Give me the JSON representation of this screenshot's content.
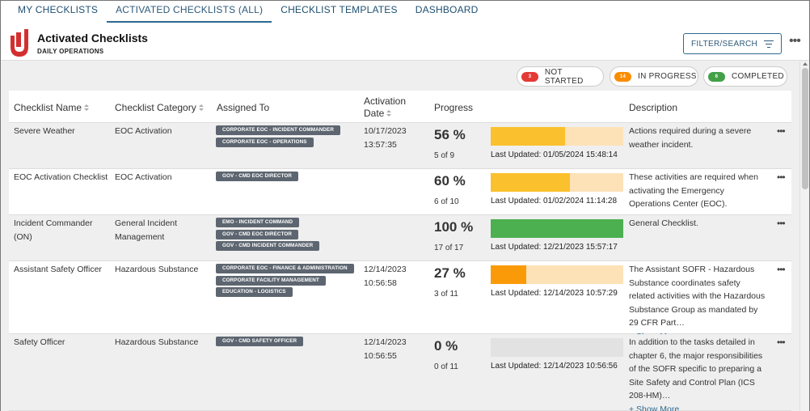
{
  "tabs": [
    "MY CHECKLISTS",
    "ACTIVATED CHECKLISTS (ALL)",
    "CHECKLIST TEMPLATES",
    "DASHBOARD"
  ],
  "header": {
    "title": "Activated Checklists",
    "subtitle": "DAILY OPERATIONS",
    "filter_label": "FILTER/SEARCH",
    "more": "•••"
  },
  "legend": [
    {
      "count": "3",
      "label": "NOT STARTED",
      "color": "#e53935"
    },
    {
      "count": "14",
      "label": "IN PROGRESS",
      "color": "#fb8c00"
    },
    {
      "count": "6",
      "label": "COMPLETED",
      "color": "#43a047"
    }
  ],
  "columns": {
    "name": "Checklist Name",
    "category": "Checklist Category",
    "assigned": "Assigned To",
    "activation_line1": "Activation",
    "activation_line2": "Date",
    "progress": "Progress",
    "description": "Description"
  },
  "rows": [
    {
      "name": "Severe Weather",
      "category": "EOC Activation",
      "assigned": [
        "CORPORATE EOC - INCIDENT COMMANDER",
        "CORPORATE EOC - OPERATIONS"
      ],
      "date": "10/17/2023",
      "time": "13:57:35",
      "percent": "56 %",
      "progress": 0.56,
      "count": "5 of 9",
      "bar_color": "#fbc02d",
      "updated": "Last Updated: 01/05/2024 15:48:14",
      "description": "Actions required during a severe weather incident.",
      "show_more": ""
    },
    {
      "name": "EOC Activation Checklist",
      "category": "EOC Activation",
      "assigned": [
        "GOV - CMD EOC DIRECTOR"
      ],
      "date": "",
      "time": "",
      "percent": "60 %",
      "progress": 0.6,
      "count": "6 of 10",
      "bar_color": "#fbc02d",
      "updated": "Last Updated: 01/02/2024 11:14:28",
      "description": "These activities are required when activating the Emergency Operations Center (EOC).",
      "show_more": ""
    },
    {
      "name": "Incident Commander (ON)",
      "category": "General Incident Management",
      "assigned": [
        "EMO - INCIDENT COMMAND",
        "GOV - CMD EOC DIRECTOR",
        "GOV - CMD INCIDENT COMMANDER"
      ],
      "date": "",
      "time": "",
      "percent": "100 %",
      "progress": 1.0,
      "count": "17 of 17",
      "bar_color": "#4caf50",
      "updated": "Last Updated: 12/21/2023 15:57:17",
      "description": "General Checklist.",
      "show_more": ""
    },
    {
      "name": "Assistant Safety Officer",
      "category": "Hazardous Substance",
      "assigned": [
        "CORPORATE EOC - FINANCE & ADMINISTRATION",
        "CORPORATE FACILITY MANAGEMENT",
        "EDUCATION - LOGISTICS"
      ],
      "date": "12/14/2023",
      "time": "10:56:58",
      "percent": "27 %",
      "progress": 0.27,
      "count": "3 of 11",
      "bar_color": "#fb9a08",
      "updated": "Last Updated: 12/14/2023 10:57:29",
      "description": "The Assistant SOFR - Hazardous Substance coordinates safety related activities with the Hazardous Substance Group as mandated by 29 CFR Part…",
      "show_more": "+ Show More"
    },
    {
      "name": "Safety Officer",
      "category": "Hazardous Substance",
      "assigned": [
        "GOV - CMD SAFETY OFFICER"
      ],
      "date": "12/14/2023",
      "time": "10:56:55",
      "percent": "0 %",
      "progress": 0.0,
      "count": "0 of 11",
      "bar_color": "#e2e2e2",
      "updated": "Last Updated: 12/14/2023 10:56:56",
      "description": "In addition to the tasks detailed in chapter 6, the major responsibilities of the SOFR specific to preparing a Site Safety and Control Plan (ICS 208-HM)…",
      "show_more": "+ Show More"
    }
  ],
  "row_more": "•••",
  "icons": {
    "logo": "juvare-logo",
    "filter": "filter-icon",
    "sort": "sort-icon"
  }
}
